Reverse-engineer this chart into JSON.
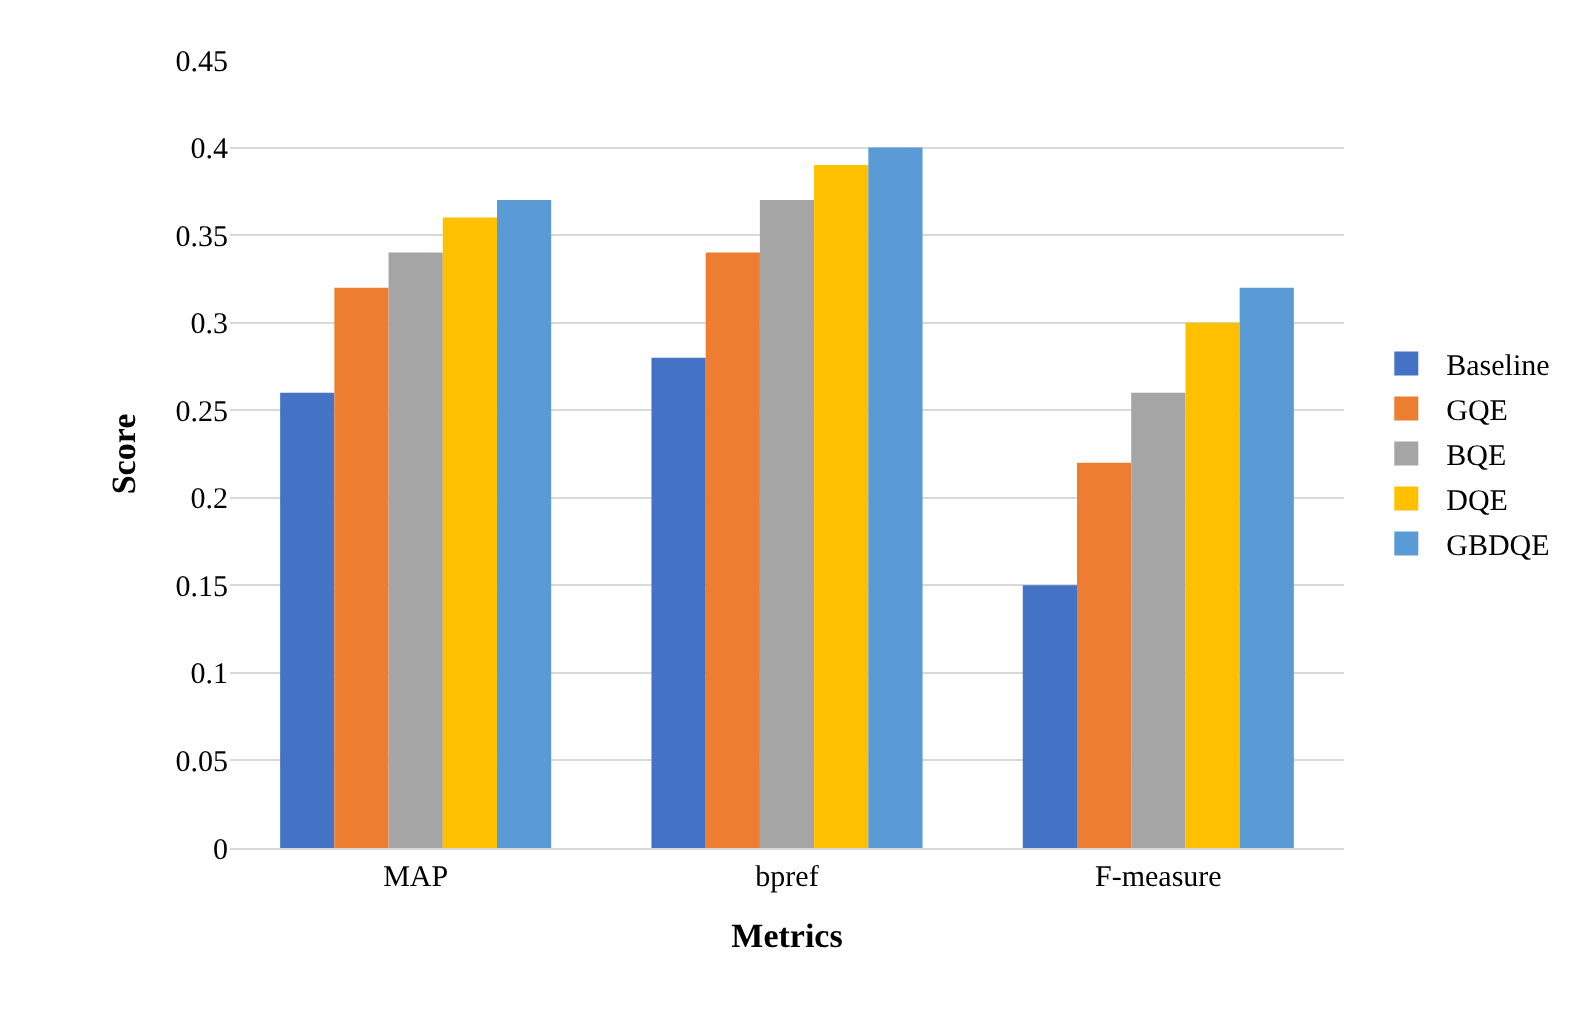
{
  "chart_data": {
    "type": "bar",
    "xlabel": "Metrics",
    "ylabel": "Score",
    "categories": [
      "MAP",
      "bpref",
      "F-measure"
    ],
    "series": [
      {
        "name": "Baseline",
        "color": "#4472c4",
        "values": [
          0.26,
          0.28,
          0.15
        ]
      },
      {
        "name": "GQE",
        "color": "#ed7d31",
        "values": [
          0.32,
          0.34,
          0.22
        ]
      },
      {
        "name": "BQE",
        "color": "#a5a5a5",
        "values": [
          0.34,
          0.37,
          0.26
        ]
      },
      {
        "name": "DQE",
        "color": "#ffc000",
        "values": [
          0.36,
          0.39,
          0.3
        ]
      },
      {
        "name": "GBDQE",
        "color": "#5b9bd5",
        "values": [
          0.37,
          0.4,
          0.32
        ]
      }
    ],
    "ylim": [
      0,
      0.45
    ],
    "yticks": [
      0,
      0.05,
      0.1,
      0.15,
      0.2,
      0.25,
      0.3,
      0.35,
      0.4,
      0.45
    ],
    "grid": "y",
    "legend": "right"
  }
}
